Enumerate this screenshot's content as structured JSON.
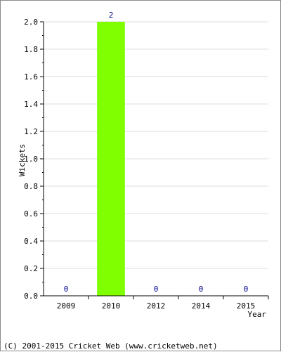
{
  "chart_data": {
    "type": "bar",
    "title": "",
    "xlabel": "Year",
    "ylabel": "Wickets",
    "categories": [
      "2009",
      "2010",
      "2012",
      "2014",
      "2015"
    ],
    "values": [
      0,
      2,
      0,
      0,
      0
    ],
    "data_labels": [
      "0",
      "2",
      "0",
      "0",
      "0"
    ],
    "ylim": [
      0,
      2.0
    ],
    "yticks": [
      "0.0",
      "0.2",
      "0.4",
      "0.6",
      "0.8",
      "1.0",
      "1.2",
      "1.4",
      "1.6",
      "1.8",
      "2.0"
    ],
    "grid": true,
    "legend": "none",
    "colors": {
      "bar": "#80ff00",
      "grid": "#dddddd",
      "axis": "#000000",
      "data_label": "#00008b",
      "border": "#8a8a8a"
    }
  },
  "footer": {
    "copyright": "(C) 2001-2015 Cricket Web (www.cricketweb.net)"
  }
}
